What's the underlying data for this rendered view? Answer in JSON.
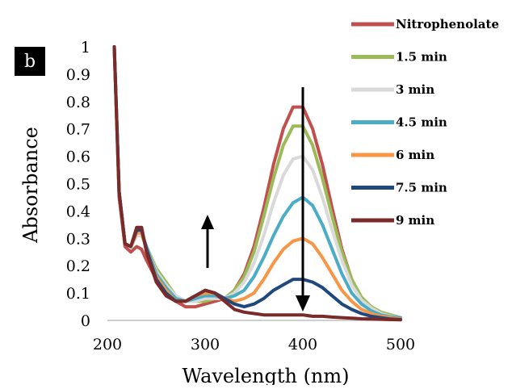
{
  "panel_label": "b",
  "chart_data": {
    "type": "line",
    "xlabel": "Wavelength (nm)",
    "ylabel": "Absorbance",
    "xlim": [
      200,
      500
    ],
    "ylim": [
      0,
      1
    ],
    "xticks": [
      "200",
      "300",
      "400",
      "500"
    ],
    "yticks": [
      "0",
      "0.1",
      "0.2",
      "0.3",
      "0.4",
      "0.5",
      "0.6",
      "0.7",
      "0.8",
      "0.9",
      "1"
    ],
    "grid": false,
    "legend_position": "top-right",
    "x": [
      207,
      212,
      218,
      224,
      230,
      235,
      240,
      250,
      260,
      270,
      280,
      290,
      300,
      310,
      320,
      330,
      340,
      350,
      360,
      370,
      380,
      390,
      400,
      410,
      420,
      430,
      440,
      450,
      460,
      470,
      480,
      490,
      500
    ],
    "series": [
      {
        "name": "Nitrophenolate",
        "color": "#c0504d",
        "values": [
          1.0,
          0.45,
          0.27,
          0.25,
          0.27,
          0.26,
          0.22,
          0.15,
          0.1,
          0.07,
          0.05,
          0.05,
          0.06,
          0.07,
          0.08,
          0.11,
          0.17,
          0.27,
          0.41,
          0.57,
          0.7,
          0.78,
          0.78,
          0.7,
          0.57,
          0.41,
          0.26,
          0.15,
          0.08,
          0.045,
          0.025,
          0.015,
          0.01
        ]
      },
      {
        "name": "1.5 min",
        "color": "#9bbb59",
        "values": [
          1.0,
          0.47,
          0.28,
          0.27,
          0.31,
          0.31,
          0.27,
          0.19,
          0.14,
          0.09,
          0.07,
          0.07,
          0.07,
          0.08,
          0.08,
          0.11,
          0.16,
          0.25,
          0.38,
          0.52,
          0.64,
          0.71,
          0.71,
          0.64,
          0.52,
          0.38,
          0.25,
          0.15,
          0.085,
          0.05,
          0.03,
          0.02,
          0.01
        ]
      },
      {
        "name": "3 min",
        "color": "#d9d9d9",
        "values": [
          1.0,
          0.47,
          0.28,
          0.27,
          0.31,
          0.31,
          0.27,
          0.18,
          0.13,
          0.09,
          0.07,
          0.07,
          0.08,
          0.08,
          0.08,
          0.1,
          0.14,
          0.21,
          0.31,
          0.43,
          0.53,
          0.59,
          0.6,
          0.55,
          0.45,
          0.33,
          0.22,
          0.13,
          0.075,
          0.045,
          0.025,
          0.015,
          0.01
        ]
      },
      {
        "name": "4.5 min",
        "color": "#4bacc6",
        "values": [
          1.0,
          0.47,
          0.28,
          0.27,
          0.32,
          0.32,
          0.27,
          0.17,
          0.12,
          0.08,
          0.07,
          0.08,
          0.09,
          0.09,
          0.08,
          0.09,
          0.11,
          0.16,
          0.23,
          0.31,
          0.38,
          0.43,
          0.45,
          0.42,
          0.35,
          0.26,
          0.17,
          0.1,
          0.06,
          0.035,
          0.02,
          0.013,
          0.01
        ]
      },
      {
        "name": "6 min",
        "color": "#f79646",
        "values": [
          1.0,
          0.47,
          0.28,
          0.27,
          0.32,
          0.32,
          0.26,
          0.16,
          0.11,
          0.07,
          0.07,
          0.09,
          0.1,
          0.1,
          0.08,
          0.07,
          0.08,
          0.1,
          0.15,
          0.21,
          0.26,
          0.29,
          0.3,
          0.28,
          0.23,
          0.17,
          0.11,
          0.07,
          0.04,
          0.025,
          0.015,
          0.01,
          0.005
        ]
      },
      {
        "name": "7.5 min",
        "color": "#1f497d",
        "values": [
          1.0,
          0.47,
          0.28,
          0.27,
          0.33,
          0.33,
          0.26,
          0.15,
          0.1,
          0.07,
          0.07,
          0.09,
          0.11,
          0.1,
          0.08,
          0.06,
          0.05,
          0.06,
          0.08,
          0.11,
          0.13,
          0.15,
          0.15,
          0.14,
          0.12,
          0.09,
          0.06,
          0.04,
          0.025,
          0.015,
          0.01,
          0.005,
          0.003
        ]
      },
      {
        "name": "9 min",
        "color": "#7b2a2a",
        "values": [
          1.0,
          0.47,
          0.28,
          0.27,
          0.34,
          0.34,
          0.25,
          0.14,
          0.09,
          0.07,
          0.07,
          0.09,
          0.11,
          0.1,
          0.07,
          0.04,
          0.03,
          0.025,
          0.02,
          0.02,
          0.02,
          0.02,
          0.02,
          0.015,
          0.015,
          0.012,
          0.01,
          0.008,
          0.006,
          0.005,
          0.004,
          0.003,
          0.002
        ]
      }
    ]
  }
}
